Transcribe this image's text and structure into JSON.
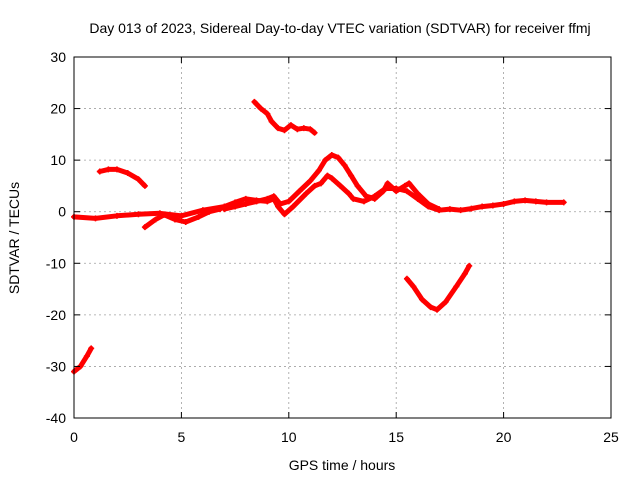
{
  "chart_data": {
    "type": "scatter",
    "title": "Day 013 of 2023, Sidereal Day-to-day VTEC variation (SDTVAR) for receiver ffmj",
    "xlabel": "GPS time / hours",
    "ylabel": "SDTVAR / TECUs",
    "xlim": [
      0,
      25
    ],
    "ylim": [
      -40,
      30
    ],
    "xticks": [
      0,
      5,
      10,
      15,
      20,
      25
    ],
    "yticks": [
      -40,
      -30,
      -20,
      -10,
      0,
      10,
      20,
      30
    ],
    "grid": true,
    "legend": "none",
    "color": "#ff0000",
    "series": [
      {
        "name": "track-main",
        "points": [
          [
            0.0,
            -1.0
          ],
          [
            1.0,
            -1.3
          ],
          [
            2.0,
            -0.8
          ],
          [
            3.0,
            -0.5
          ],
          [
            4.0,
            -0.3
          ],
          [
            5.0,
            -0.8
          ],
          [
            6.0,
            0.3
          ],
          [
            7.0,
            1.0
          ],
          [
            7.5,
            1.8
          ],
          [
            8.0,
            2.5
          ],
          [
            8.5,
            2.2
          ],
          [
            9.0,
            2.0
          ],
          [
            9.3,
            2.5
          ],
          [
            9.5,
            1.0
          ],
          [
            9.8,
            -0.5
          ],
          [
            10.2,
            1.0
          ],
          [
            10.8,
            3.5
          ],
          [
            11.2,
            5.0
          ],
          [
            11.5,
            5.5
          ],
          [
            11.8,
            7.0
          ],
          [
            12.0,
            6.5
          ],
          [
            12.4,
            5.0
          ],
          [
            12.8,
            3.5
          ],
          [
            13.0,
            2.5
          ],
          [
            13.5,
            2.0
          ],
          [
            14.0,
            3.0
          ],
          [
            14.5,
            4.5
          ],
          [
            15.0,
            4.5
          ],
          [
            15.5,
            4.0
          ],
          [
            16.0,
            2.5
          ],
          [
            16.5,
            1.0
          ],
          [
            17.0,
            0.3
          ],
          [
            17.5,
            0.5
          ],
          [
            18.0,
            0.3
          ],
          [
            18.5,
            0.6
          ],
          [
            19.0,
            1.0
          ],
          [
            19.5,
            1.2
          ],
          [
            20.0,
            1.5
          ],
          [
            20.5,
            2.0
          ],
          [
            21.0,
            2.2
          ],
          [
            21.5,
            2.0
          ],
          [
            22.0,
            1.8
          ],
          [
            22.8,
            1.8
          ]
        ]
      },
      {
        "name": "track-upper-branch",
        "points": [
          [
            7.0,
            0.5
          ],
          [
            7.5,
            1.0
          ],
          [
            8.0,
            1.5
          ],
          [
            8.5,
            2.0
          ],
          [
            9.0,
            2.5
          ],
          [
            9.3,
            3.0
          ],
          [
            9.6,
            1.5
          ],
          [
            10.0,
            2.0
          ],
          [
            10.5,
            4.0
          ],
          [
            11.0,
            6.0
          ],
          [
            11.4,
            8.0
          ],
          [
            11.7,
            10.0
          ],
          [
            12.0,
            11.0
          ],
          [
            12.3,
            10.5
          ],
          [
            12.6,
            9.0
          ],
          [
            12.9,
            7.0
          ],
          [
            13.2,
            5.0
          ],
          [
            13.6,
            3.0
          ],
          [
            14.0,
            2.5
          ],
          [
            14.4,
            4.0
          ],
          [
            14.6,
            5.5
          ],
          [
            15.0,
            4.0
          ],
          [
            15.4,
            5.0
          ],
          [
            15.6,
            5.5
          ],
          [
            16.0,
            3.5
          ],
          [
            16.5,
            1.5
          ],
          [
            17.0,
            0.5
          ]
        ]
      },
      {
        "name": "track-lower-dip",
        "points": [
          [
            3.3,
            -3.0
          ],
          [
            3.8,
            -1.5
          ],
          [
            4.2,
            -0.6
          ],
          [
            4.7,
            -1.5
          ],
          [
            5.2,
            -2.0
          ],
          [
            5.8,
            -1.0
          ],
          [
            6.3,
            0.0
          ],
          [
            6.8,
            0.5
          ]
        ]
      },
      {
        "name": "track-upper-left",
        "points": [
          [
            1.2,
            7.8
          ],
          [
            1.6,
            8.2
          ],
          [
            2.0,
            8.2
          ],
          [
            2.5,
            7.5
          ],
          [
            3.0,
            6.3
          ],
          [
            3.3,
            5.0
          ]
        ]
      },
      {
        "name": "track-top",
        "points": [
          [
            8.4,
            21.3
          ],
          [
            8.7,
            20.0
          ],
          [
            9.0,
            19.0
          ],
          [
            9.2,
            17.5
          ],
          [
            9.5,
            16.2
          ],
          [
            9.8,
            15.8
          ],
          [
            10.1,
            16.8
          ],
          [
            10.4,
            16.0
          ],
          [
            10.7,
            16.2
          ],
          [
            11.0,
            16.0
          ],
          [
            11.2,
            15.3
          ]
        ]
      },
      {
        "name": "track-v-shape",
        "points": [
          [
            15.5,
            -13.0
          ],
          [
            15.8,
            -14.5
          ],
          [
            16.2,
            -17.0
          ],
          [
            16.6,
            -18.5
          ],
          [
            16.9,
            -19.0
          ],
          [
            17.3,
            -17.5
          ],
          [
            17.8,
            -14.5
          ],
          [
            18.2,
            -12.0
          ],
          [
            18.4,
            -10.5
          ]
        ]
      },
      {
        "name": "track-bottom-left",
        "points": [
          [
            0.0,
            -31.0
          ],
          [
            0.3,
            -30.0
          ],
          [
            0.6,
            -28.0
          ],
          [
            0.8,
            -26.5
          ]
        ]
      }
    ]
  }
}
